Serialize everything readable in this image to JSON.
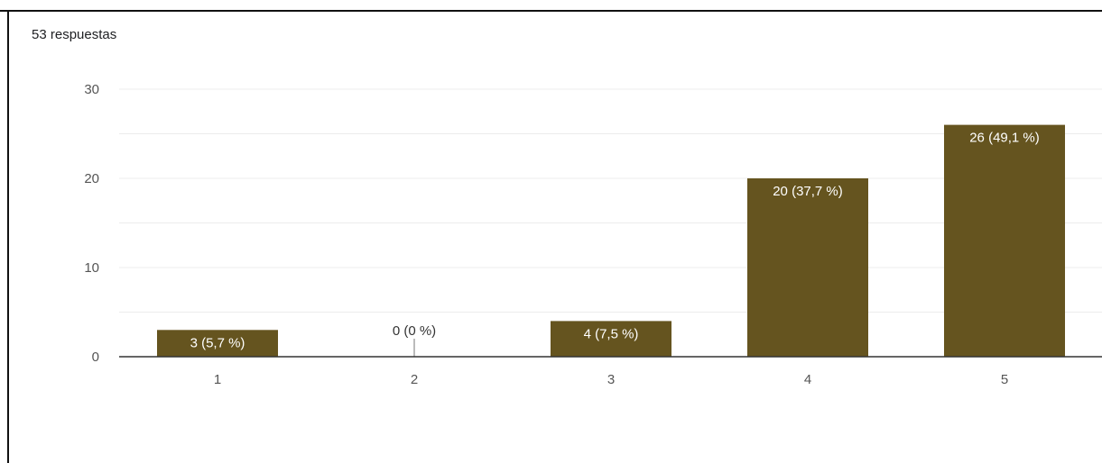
{
  "header": {
    "response_count": "53 respuestas"
  },
  "colors": {
    "bar": "#65541f",
    "bar_label_inside": "#ffffff",
    "bar_label_outside": "#333333",
    "grid": "#ececec",
    "axis": "#333333"
  },
  "chart_data": {
    "type": "bar",
    "categories": [
      "1",
      "2",
      "3",
      "4",
      "5"
    ],
    "values": [
      3,
      0,
      4,
      20,
      26
    ],
    "data_labels": [
      "3 (5,7 %)",
      "0 (0 %)",
      "4 (7,5 %)",
      "20 (37,7 %)",
      "26 (49,1 %)"
    ],
    "y_ticks": [
      0,
      10,
      20,
      30
    ],
    "ylim": [
      0,
      30
    ],
    "grid": true,
    "title": "",
    "xlabel": "",
    "ylabel": ""
  }
}
